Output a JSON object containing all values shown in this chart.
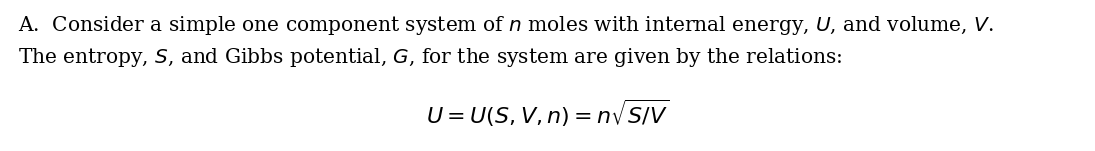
{
  "line1": "A.  Consider a simple one component system of $n$ moles with internal energy, $U$, and volume, $V$.",
  "line2": "The entropy, $S$, and Gibbs potential, $G$, for the system are given by the relations:",
  "formula": "$U = U(S, V, n) = n\\sqrt{S/V}$",
  "text_color": "#000000",
  "background_color": "#ffffff",
  "fontsize_text": 14.5,
  "fontsize_formula": 16,
  "fig_width": 10.95,
  "fig_height": 1.51,
  "dpi": 100
}
